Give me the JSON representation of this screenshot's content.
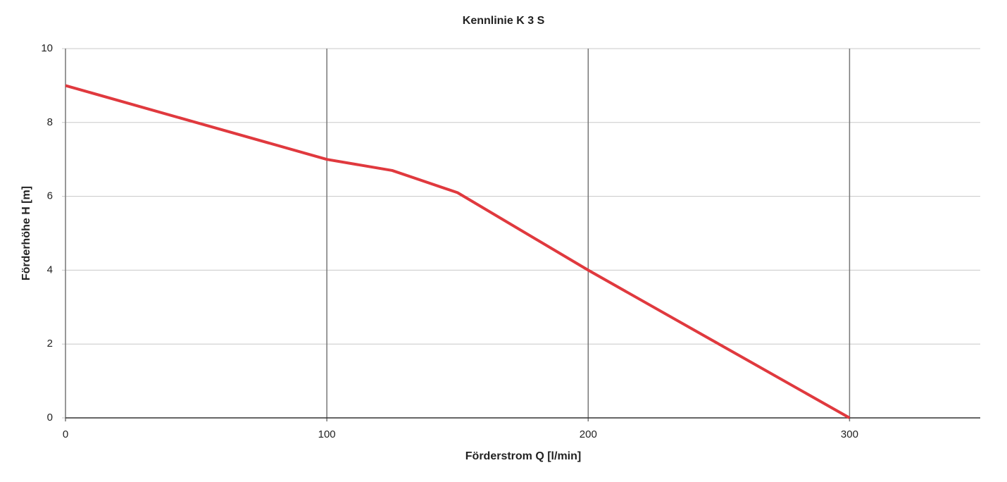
{
  "chart_data": {
    "type": "line",
    "title": "Kennlinie K 3 S",
    "x_label": "Förderstrom Q [l/min]",
    "y_label": "Förderhöhe H [m]",
    "x": [
      0,
      50,
      100,
      125,
      150,
      200,
      250,
      300
    ],
    "values": [
      9,
      8,
      7,
      6.7,
      6.1,
      4,
      2,
      0
    ],
    "color": "#e0393e",
    "xlim": [
      0,
      350
    ],
    "xticks": [
      0,
      100,
      200,
      300
    ],
    "ylim": [
      0,
      10
    ],
    "yticks": [
      0,
      2,
      4,
      6,
      8,
      10
    ],
    "grid": true
  }
}
